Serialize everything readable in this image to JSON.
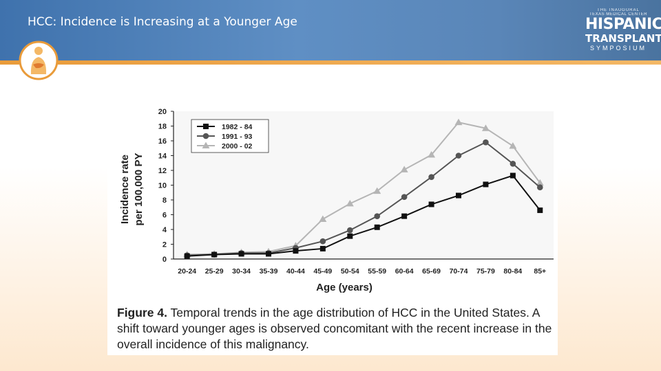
{
  "slide": {
    "title": "HCC: Incidence is Increasing at a Younger Age"
  },
  "brand": {
    "line1": "THE INAUGURAL",
    "line2": "TEXAS MEDICAL CENTER",
    "line3": "HISPANIC",
    "line4": "TRANSPLANT",
    "line5": "SYMPOSIUM"
  },
  "caption": {
    "label": "Figure 4.",
    "text": "Temporal trends in the age distribution of HCC in the United States. A shift toward younger ages is observed concomitant with the recent increase in the overall incidence of this malignancy."
  },
  "chart_data": {
    "type": "line",
    "title": "",
    "xlabel": "Age (years)",
    "ylabel": "Incidence rate per 100,000 PY",
    "ylim": [
      0,
      20
    ],
    "yticks": [
      0,
      2,
      4,
      6,
      8,
      10,
      12,
      14,
      16,
      18,
      20
    ],
    "categories": [
      "20-24",
      "25-29",
      "30-34",
      "35-39",
      "40-44",
      "45-49",
      "50-54",
      "55-59",
      "60-64",
      "65-69",
      "70-74",
      "75-79",
      "80-84",
      "85+"
    ],
    "legend_position": "top-left",
    "series": [
      {
        "name": "1982 - 84",
        "marker": "square",
        "color": "#111111",
        "values": [
          0.4,
          0.6,
          0.7,
          0.7,
          1.1,
          1.4,
          3.1,
          4.3,
          5.8,
          7.4,
          8.6,
          10.1,
          11.3,
          6.6
        ]
      },
      {
        "name": "1991 - 93",
        "marker": "circle",
        "color": "#555555",
        "values": [
          0.5,
          0.6,
          0.8,
          0.8,
          1.5,
          2.4,
          3.9,
          5.8,
          8.4,
          11.1,
          14.0,
          15.8,
          12.9,
          9.7
        ]
      },
      {
        "name": "2000 - 02",
        "marker": "triangle",
        "color": "#b5b5b5",
        "values": [
          0.6,
          0.7,
          0.9,
          1.0,
          1.8,
          5.4,
          7.5,
          9.2,
          12.1,
          14.1,
          18.5,
          17.7,
          15.3,
          10.3
        ]
      }
    ]
  }
}
